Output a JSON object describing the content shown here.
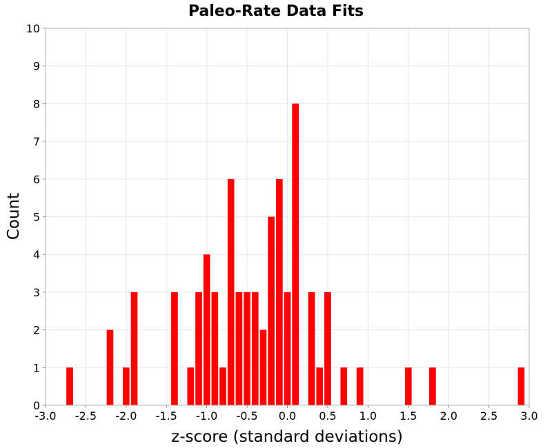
{
  "chart_data": {
    "type": "bar",
    "title": "Paleo-Rate Data Fits",
    "xlabel": "z-score (standard deviations)",
    "ylabel": "Count",
    "xlim": [
      -3.0,
      3.0
    ],
    "ylim": [
      0,
      10
    ],
    "bin_width": 0.1,
    "grid": true,
    "bar_color": "#ff0000",
    "x_ticks": [
      -3.0,
      -2.5,
      -2.0,
      -1.5,
      -1.0,
      -0.5,
      0.0,
      0.5,
      1.0,
      1.5,
      2.0,
      2.5,
      3.0
    ],
    "x_tick_labels": [
      "-3.0",
      "-2.5",
      "-2.0",
      "-1.5",
      "-1.0",
      "-0.5",
      "0.0",
      "0.5",
      "1.0",
      "1.5",
      "2.0",
      "2.5",
      "3.0"
    ],
    "y_ticks": [
      0,
      1,
      2,
      3,
      4,
      5,
      6,
      7,
      8,
      9,
      10
    ],
    "y_tick_labels": [
      "0",
      "1",
      "2",
      "3",
      "4",
      "5",
      "6",
      "7",
      "8",
      "9",
      "10"
    ],
    "bins": [
      {
        "x": -2.7,
        "count": 1
      },
      {
        "x": -2.2,
        "count": 2
      },
      {
        "x": -2.0,
        "count": 1
      },
      {
        "x": -1.9,
        "count": 3
      },
      {
        "x": -1.4,
        "count": 3
      },
      {
        "x": -1.2,
        "count": 1
      },
      {
        "x": -1.1,
        "count": 3
      },
      {
        "x": -1.0,
        "count": 4
      },
      {
        "x": -0.9,
        "count": 3
      },
      {
        "x": -0.8,
        "count": 1
      },
      {
        "x": -0.7,
        "count": 6
      },
      {
        "x": -0.6,
        "count": 3
      },
      {
        "x": -0.5,
        "count": 3
      },
      {
        "x": -0.4,
        "count": 3
      },
      {
        "x": -0.3,
        "count": 2
      },
      {
        "x": -0.2,
        "count": 5
      },
      {
        "x": -0.1,
        "count": 6
      },
      {
        "x": 0.0,
        "count": 3
      },
      {
        "x": 0.1,
        "count": 8
      },
      {
        "x": 0.3,
        "count": 3
      },
      {
        "x": 0.4,
        "count": 1
      },
      {
        "x": 0.5,
        "count": 3
      },
      {
        "x": 0.7,
        "count": 1
      },
      {
        "x": 0.9,
        "count": 1
      },
      {
        "x": 1.5,
        "count": 1
      },
      {
        "x": 1.8,
        "count": 1
      },
      {
        "x": 2.9,
        "count": 1
      }
    ]
  }
}
